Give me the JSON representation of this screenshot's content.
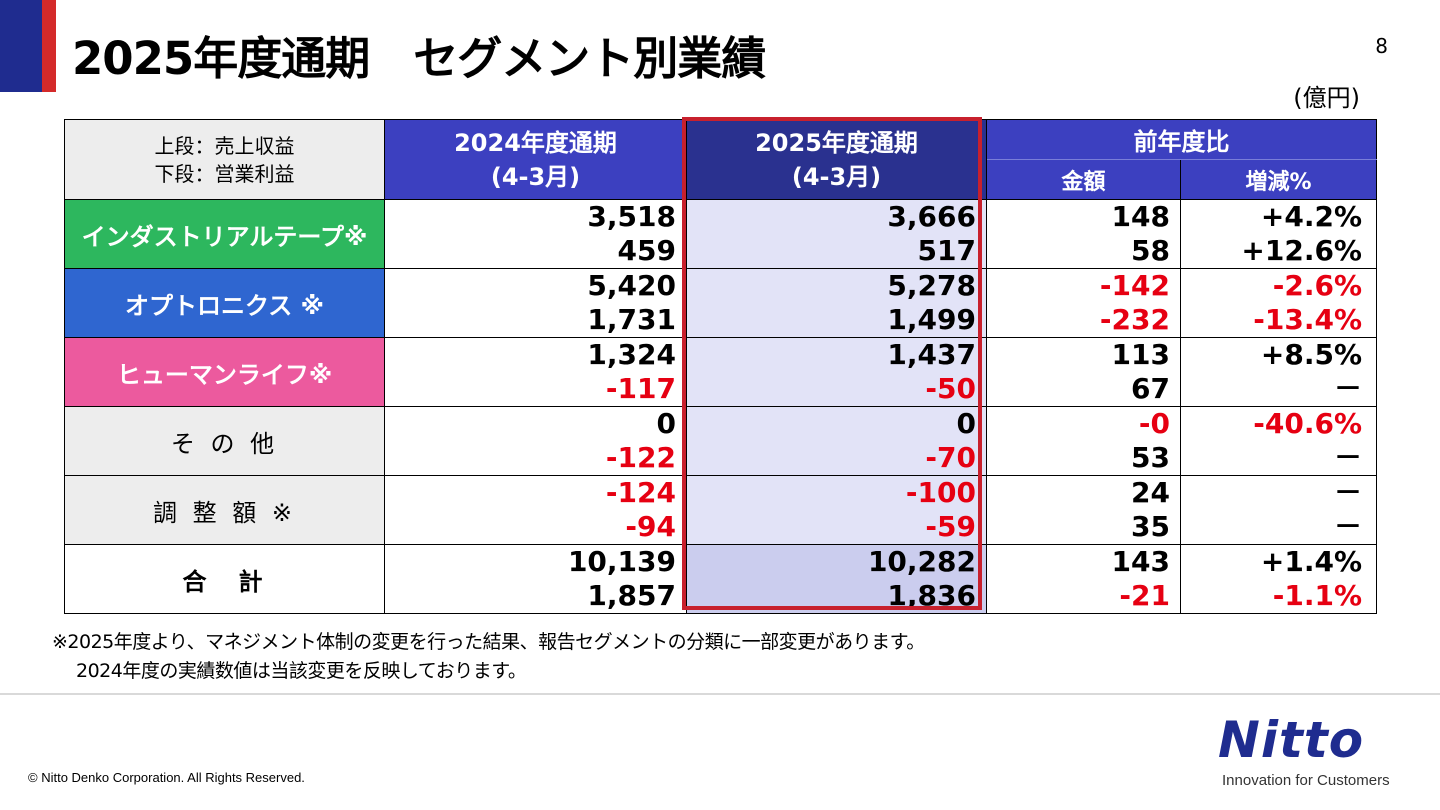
{
  "header": {
    "title": "2025年度通期　セグメント別業績",
    "page_number": "8",
    "unit": "(億円)"
  },
  "table": {
    "legend": {
      "line1": "上段：売上収益",
      "line2": "下段：営業利益"
    },
    "col_fy2024": {
      "line1": "2024年度通期",
      "line2": "(4-3月)"
    },
    "col_fy2025": {
      "line1": "2025年度通期",
      "line2": "(4-3月)"
    },
    "col_comparison": "前年度比",
    "col_amount": "金額",
    "col_change_pct": "増減%",
    "rows": [
      {
        "label": "インダストリアルテープ※",
        "fy2024": [
          "3,518",
          "459"
        ],
        "fy2025": [
          "3,666",
          "517"
        ],
        "amount": [
          "148",
          "58"
        ],
        "pct": [
          "+4.2%",
          "+12.6%"
        ]
      },
      {
        "label": "オプトロニクス ※",
        "fy2024": [
          "5,420",
          "1,731"
        ],
        "fy2025": [
          "5,278",
          "1,499"
        ],
        "amount": [
          "-142",
          "-232"
        ],
        "pct": [
          "-2.6%",
          "-13.4%"
        ]
      },
      {
        "label": "ヒューマンライフ※",
        "fy2024": [
          "1,324",
          "-117"
        ],
        "fy2025": [
          "1,437",
          "-50"
        ],
        "amount": [
          "113",
          "67"
        ],
        "pct": [
          "+8.5%",
          "－"
        ]
      },
      {
        "label": "そ の 他",
        "fy2024": [
          "0",
          "-122"
        ],
        "fy2025": [
          "0",
          "-70"
        ],
        "amount": [
          "-0",
          "53"
        ],
        "pct": [
          "-40.6%",
          "－"
        ]
      },
      {
        "label": "調 整 額 ※",
        "fy2024": [
          "-124",
          "-94"
        ],
        "fy2025": [
          "-100",
          "-59"
        ],
        "amount": [
          "24",
          "35"
        ],
        "pct": [
          "－",
          "－"
        ]
      },
      {
        "label": "合　計",
        "fy2024": [
          "10,139",
          "1,857"
        ],
        "fy2025": [
          "10,282",
          "1,836"
        ],
        "amount": [
          "143",
          "-21"
        ],
        "pct": [
          "+1.4%",
          "-1.1%"
        ]
      }
    ]
  },
  "notes": {
    "line1": "※2025年度より、マネジメント体制の変更を行った結果、報告セグメントの分類に一部変更があります。",
    "line2": "2024年度の実績数値は当該変更を反映しております。"
  },
  "footer": {
    "copyright": "© Nitto Denko Corporation. All Rights Reserved.",
    "logo_text": "Nitto",
    "tagline": "Innovation for Customers"
  },
  "colors": {
    "title_navy": "#1F2C8F",
    "title_red": "#D42A2A",
    "header_blue": "#3C40C0",
    "header_dark": "#2A318F",
    "industrial_tape": "#2DB75E",
    "optronics": "#2F66D0",
    "human_life": "#EC5A9E",
    "negative": "#E60012",
    "highlight_box": "#C8202D"
  }
}
